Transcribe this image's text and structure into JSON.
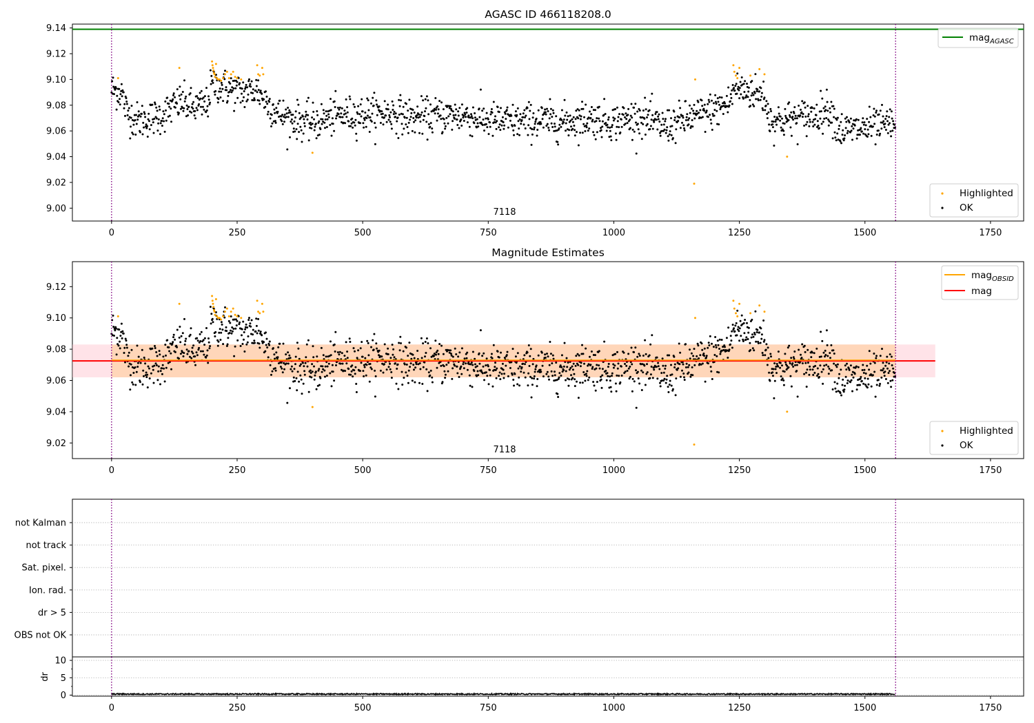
{
  "figure": {
    "panels": [
      {
        "id": "top",
        "title": "AGASC ID 466118208.0",
        "annotation": "7118",
        "legend_upper": [
          {
            "label": "mag",
            "subscript": "AGASC",
            "color": "#008000",
            "kind": "line"
          }
        ],
        "legend_lower": [
          {
            "label": "Highlighted",
            "color": "#ffa500",
            "kind": "dot"
          },
          {
            "label": "OK",
            "color": "#000000",
            "kind": "dot"
          }
        ]
      },
      {
        "id": "middle",
        "title": "Magnitude Estimates",
        "annotation": "7118",
        "legend_upper": [
          {
            "label": "mag",
            "subscript": "OBSID",
            "color": "#ffa500",
            "kind": "line"
          },
          {
            "label": "mag",
            "subscript": "",
            "color": "#ff0000",
            "kind": "line"
          }
        ],
        "legend_lower": [
          {
            "label": "Highlighted",
            "color": "#ffa500",
            "kind": "dot"
          },
          {
            "label": "OK",
            "color": "#000000",
            "kind": "dot"
          }
        ]
      },
      {
        "id": "flags",
        "title": "",
        "flag_labels": [
          "not Kalman",
          "not track",
          "Sat. pixel.",
          "Ion. rad.",
          "dr > 5",
          "OBS not OK"
        ]
      },
      {
        "id": "dr",
        "title": "",
        "ylabel": "dr"
      }
    ]
  },
  "chart_data": [
    {
      "type": "scatter",
      "title": "AGASC ID 466118208.0",
      "xlabel": "",
      "ylabel": "",
      "xlim": [
        -78,
        1816
      ],
      "ylim": [
        8.99,
        9.143
      ],
      "xticks": [
        0,
        250,
        500,
        750,
        1000,
        1250,
        1500,
        1750
      ],
      "yticks": [
        9.0,
        9.02,
        9.04,
        9.06,
        9.08,
        9.1,
        9.12,
        9.14
      ],
      "ytick_decimals": 2,
      "grid": false,
      "legend": [
        "top-right",
        "bottom-right"
      ],
      "annotations": [
        {
          "text": "7118",
          "x": 780,
          "position": "bottom"
        }
      ],
      "vlines": [
        0,
        1561
      ],
      "mag_agasc": 9.139,
      "series": [
        {
          "name": "OK",
          "color": "#000000",
          "n_points": 1561,
          "x_range": [
            0,
            1561
          ],
          "trend_x": [
            0,
            20,
            30,
            50,
            80,
            100,
            120,
            140,
            160,
            190,
            200,
            215,
            230,
            260,
            290,
            310,
            330,
            350,
            400,
            450,
            500,
            560,
            600,
            650,
            700,
            750,
            800,
            850,
            900,
            950,
            1000,
            1050,
            1100,
            1150,
            1200,
            1230,
            1240,
            1260,
            1300,
            1310,
            1330,
            1400,
            1430,
            1450,
            1500,
            1561
          ],
          "trend_y": [
            9.092,
            9.09,
            9.075,
            9.068,
            9.07,
            9.072,
            9.078,
            9.083,
            9.078,
            9.08,
            9.097,
            9.095,
            9.093,
            9.09,
            9.092,
            9.082,
            9.074,
            9.07,
            9.066,
            9.072,
            9.073,
            9.074,
            9.07,
            9.072,
            9.072,
            9.068,
            9.067,
            9.068,
            9.067,
            9.07,
            9.067,
            9.071,
            9.063,
            9.07,
            9.076,
            9.082,
            9.093,
            9.092,
            9.087,
            9.069,
            9.068,
            9.072,
            9.078,
            9.06,
            9.062,
            9.065
          ],
          "scatter_sd": 0.007
        },
        {
          "name": "Highlighted",
          "color": "#ffa500",
          "x": [
            13,
            135,
            200,
            201,
            202,
            203,
            204,
            205,
            206,
            208,
            210,
            212,
            215,
            218,
            222,
            226,
            230,
            234,
            238,
            242,
            246,
            250,
            258,
            290,
            292,
            295,
            300,
            302,
            400,
            1160,
            1162,
            1345,
            1238,
            1240,
            1243,
            1246,
            1250,
            1272,
            1290,
            1300
          ],
          "y": [
            9.101,
            9.109,
            9.114,
            9.111,
            9.109,
            9.107,
            9.105,
            9.104,
            9.102,
            9.112,
            9.101,
            9.1,
            9.1,
            9.099,
            9.101,
            9.104,
            9.106,
            9.101,
            9.104,
            9.106,
            9.102,
            9.101,
            9.1,
            9.111,
            9.104,
            9.103,
            9.109,
            9.104,
            9.043,
            9.019,
            9.1,
            9.04,
            9.111,
            9.106,
            9.103,
            9.101,
            9.109,
            9.103,
            9.108,
            9.104
          ]
        }
      ]
    },
    {
      "type": "scatter",
      "title": "Magnitude Estimates",
      "xlabel": "",
      "ylabel": "",
      "xlim": [
        -78,
        1816
      ],
      "ylim": [
        9.01,
        9.136
      ],
      "xticks": [
        0,
        250,
        500,
        750,
        1000,
        1250,
        1500,
        1750
      ],
      "yticks": [
        9.02,
        9.04,
        9.06,
        9.08,
        9.1,
        9.12
      ],
      "ytick_decimals": 2,
      "grid": false,
      "legend": [
        "top-right",
        "bottom-right"
      ],
      "annotations": [
        {
          "text": "7118",
          "x": 780,
          "position": "bottom"
        }
      ],
      "vlines": [
        0,
        1561
      ],
      "mag": 9.0725,
      "mag_band": [
        9.062,
        9.083
      ],
      "mag_line_xrange": [
        -78,
        1640
      ],
      "mag_obsid": 9.073,
      "mag_obsid_xrange": [
        0,
        1561
      ],
      "series": [
        {
          "name": "OK",
          "same_as_panel": 0
        },
        {
          "name": "Highlighted",
          "same_as_panel": 0
        }
      ]
    },
    {
      "type": "scatter",
      "title": "",
      "xlim": [
        -78,
        1816
      ],
      "categories": [
        "not Kalman",
        "not track",
        "Sat. pixel.",
        "Ion. rad.",
        "dr > 5",
        "OBS not OK"
      ],
      "grid": "dotted",
      "vlines": [
        0,
        1561
      ],
      "flagged_points": []
    },
    {
      "type": "line",
      "title": "",
      "ylabel": "dr",
      "xlim": [
        -78,
        1816
      ],
      "ylim": [
        -0.3,
        11
      ],
      "xticks": [
        0,
        250,
        500,
        750,
        1000,
        1250,
        1500,
        1750
      ],
      "yticks": [
        0,
        5,
        10
      ],
      "grid": "dotted",
      "vlines": [
        0,
        1561
      ],
      "series": [
        {
          "name": "dr",
          "n_points": 1561,
          "typical_value": 0.3,
          "color": "#000000"
        }
      ]
    }
  ]
}
